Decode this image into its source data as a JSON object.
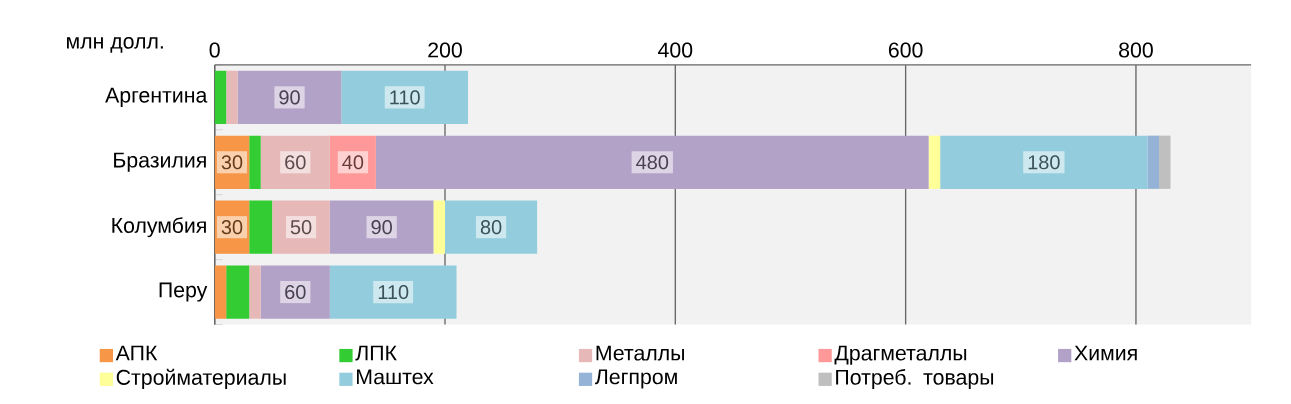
{
  "chart_data": {
    "type": "bar",
    "orientation": "horizontal",
    "stacked": true,
    "xlabel": "млн долл.",
    "categories": [
      "Аргентина",
      "Бразилия",
      "Колумбия",
      "Перу"
    ],
    "xlim": [
      0,
      900
    ],
    "xticks": [
      0,
      200,
      400,
      600,
      800
    ],
    "grid": "x",
    "legend": "bottom",
    "series": [
      {
        "name": "АПК",
        "color": "#f79646",
        "values": [
          0,
          30,
          30,
          10
        ],
        "value_labels": [
          null,
          "30",
          "30",
          null
        ]
      },
      {
        "name": "ЛПК",
        "color": "#33cc33",
        "values": [
          10,
          10,
          20,
          20
        ]
      },
      {
        "name": "Металлы",
        "color": "#e6b9b8",
        "values": [
          10,
          60,
          50,
          10
        ],
        "value_labels": [
          null,
          "60",
          "50",
          null
        ]
      },
      {
        "name": "Драгметаллы",
        "color": "#ff9999",
        "values": [
          0,
          40,
          0,
          0
        ],
        "value_labels": [
          null,
          "40",
          null,
          null
        ]
      },
      {
        "name": "Химия",
        "color": "#b3a2c7",
        "values": [
          90,
          480,
          90,
          60
        ],
        "value_labels": [
          "90",
          "480",
          "90",
          "60"
        ]
      },
      {
        "name": "Стройматериалы",
        "color": "#ffff99",
        "values": [
          0,
          10,
          10,
          0
        ]
      },
      {
        "name": "Маштех",
        "color": "#93cddd",
        "values": [
          110,
          180,
          80,
          110
        ],
        "value_labels": [
          "110",
          "180",
          "80",
          "110"
        ]
      },
      {
        "name": "Легпром",
        "color": "#95b3d7",
        "values": [
          0,
          10,
          0,
          0
        ]
      },
      {
        "name": "Потреб. товары",
        "color": "#bfbfbf",
        "values": [
          0,
          10,
          0,
          0
        ]
      }
    ]
  }
}
